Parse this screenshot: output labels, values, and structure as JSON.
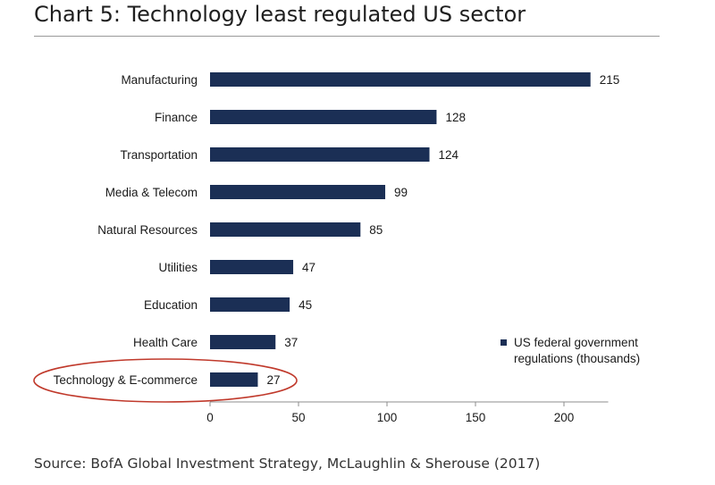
{
  "chart_data": {
    "type": "bar",
    "orientation": "horizontal",
    "title": "Chart 5: Technology least regulated US sector",
    "categories": [
      "Manufacturing",
      "Finance",
      "Transportation",
      "Media & Telecom",
      "Natural Resources",
      "Utilities",
      "Education",
      "Health Care",
      "Technology & E-commerce"
    ],
    "series": [
      {
        "name": "US federal government regulations (thousands)",
        "values": [
          215,
          128,
          124,
          99,
          85,
          47,
          45,
          37,
          27
        ]
      }
    ],
    "data_labels": [
      "215",
      "128",
      "124",
      "99",
      "85",
      "47",
      "45",
      "37",
      "27"
    ],
    "xlim": [
      0,
      225
    ],
    "xticks": [
      0,
      50,
      100,
      150,
      200
    ],
    "xtick_labels": [
      "0",
      "50",
      "100",
      "150",
      "200"
    ],
    "legend_position": "bottom-right",
    "legend_lines": [
      "US federal government",
      "regulations (thousands)"
    ],
    "highlighted_category": "Technology & E-commerce",
    "bar_color": "#1b2f55",
    "highlight_color": "#c0392b",
    "grid": false
  },
  "source": "Source: BofA Global Investment Strategy, McLaughlin & Sherouse (2017)"
}
